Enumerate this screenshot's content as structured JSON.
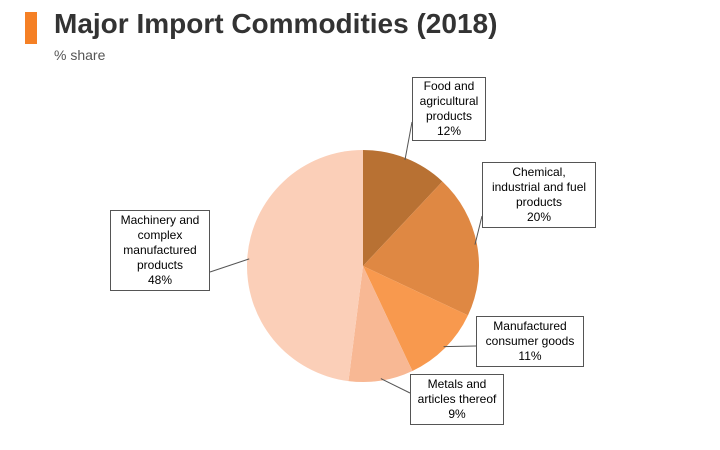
{
  "colors": {
    "accent": "#f58025",
    "title_text": "#333333",
    "subtitle_text": "#555555",
    "callout_border": "#555555",
    "leader_line": "#555555"
  },
  "chart_data": {
    "type": "pie",
    "title": "Major Import Commodities (2018)",
    "subtitle": "% share",
    "unit": "%",
    "start_angle_deg": 0,
    "direction": "clockwise",
    "slices": [
      {
        "label": "Food and\nagricultural\nproducts",
        "value": 12,
        "value_label": "12%",
        "color": "#b87133"
      },
      {
        "label": "Chemical,\nindustrial and fuel\nproducts",
        "value": 20,
        "value_label": "20%",
        "color": "#df8843"
      },
      {
        "label": "Manufactured\nconsumer goods",
        "value": 11,
        "value_label": "11%",
        "color": "#f8994e"
      },
      {
        "label": "Metals and\narticles thereof",
        "value": 9,
        "value_label": "9%",
        "color": "#f8b894"
      },
      {
        "label": "Machinery and\ncomplex\nmanufactured\nproducts",
        "value": 48,
        "value_label": "48%",
        "color": "#fbcfb8"
      }
    ]
  }
}
